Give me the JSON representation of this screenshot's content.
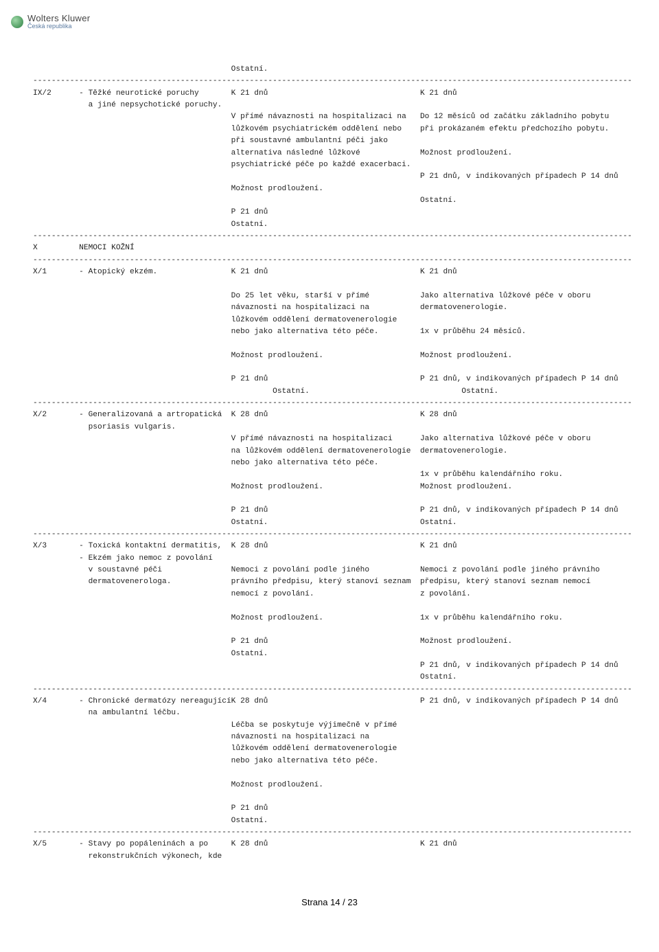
{
  "logo": {
    "brand": "Wolters Kluwer",
    "sub": "Česká republika"
  },
  "footer": {
    "text": "Strana 14 / 23"
  },
  "divider": "----------------------------------------------------------------------------------------------------------------------------------",
  "indent": {
    "col1": "",
    "col2": "          ",
    "col3": "                                           ",
    "col4": "                                                                                    "
  },
  "entries": [
    {
      "code": "IX/2",
      "title_lines": [
        "- Těžké neurotické poruchy",
        "  a jiné nepsychotické poruchy."
      ],
      "col3": [
        "K 21 dnů",
        "",
        "V přímé návaznosti na hospitalizaci na",
        "lůžkovém psychiatrickém oddělení nebo",
        "při soustavné ambulantní péči jako",
        "alternativa následné lůžkové",
        "psychiatrické péče po každé exacerbaci.",
        "",
        "Možnost prodloužení.",
        "",
        "P 21 dnů",
        "Ostatní."
      ],
      "col4": [
        "K 21 dnů",
        "",
        "Do 12 měsíců od začátku základního pobytu",
        "při prokázaném efektu předchozího pobytu.",
        "",
        "Možnost prodloužení.",
        "",
        "P 21 dnů, v indikovaných případech P 14 dnů",
        "",
        "Ostatní."
      ]
    },
    {
      "code": "X",
      "title_lines": [
        "NEMOCI KOŽNÍ"
      ],
      "col3": [],
      "col4": []
    },
    {
      "code": "X/1",
      "title_lines": [
        "- Atopický ekzém."
      ],
      "col3": [
        "K 21 dnů",
        "",
        "Do 25 let věku, starší v přímé",
        "návaznosti na hospitalizaci na",
        "lůžkovém oddělení dermatovenerologie",
        "nebo jako alternativa této péče.",
        "",
        "Možnost prodloužení.",
        "",
        "P 21 dnů",
        "         Ostatní."
      ],
      "col4": [
        "K 21 dnů",
        "",
        "Jako alternativa lůžkové péče v oboru",
        "dermatovenerologie.",
        "",
        "1x v průběhu 24 měsíců.",
        "",
        "Možnost prodloužení.",
        "",
        "P 21 dnů, v indikovaných případech P 14 dnů",
        "         Ostatní."
      ]
    },
    {
      "code": "X/2",
      "title_lines": [
        "- Generalizovaná a artropatická",
        "  psoriasis vulgaris."
      ],
      "col3": [
        "K 28 dnů",
        "",
        "V přímé návaznosti na hospitalizaci",
        "na lůžkovém oddělení dermatovenerologie",
        "nebo jako alternativa této péče.",
        "",
        "Možnost prodloužení.",
        "",
        "P 21 dnů",
        "Ostatní."
      ],
      "col4": [
        "K 28 dnů",
        "",
        "Jako alternativa lůžkové péče v oboru",
        "dermatovenerologie.",
        "",
        "1x v průběhu kalendářního roku.",
        "Možnost prodloužení.",
        "",
        "P 21 dnů, v indikovaných případech P 14 dnů",
        "Ostatní."
      ]
    },
    {
      "code": "X/3",
      "title_lines": [
        "- Toxická kontaktní dermatitis,",
        "- Ekzém jako nemoc z povolání",
        "  v soustavné péči",
        "  dermatovenerologa."
      ],
      "col3": [
        "K 28 dnů",
        "",
        "Nemoci z povolání podle jiného",
        "právního předpisu, který stanoví seznam",
        "nemocí z povolání.",
        "",
        "Možnost prodloužení.",
        "",
        "P 21 dnů",
        "Ostatní."
      ],
      "col4": [
        "K 21 dnů",
        "",
        "Nemoci z povolání podle jiného právního",
        "předpisu, který stanoví seznam nemocí",
        "z povolání.",
        "",
        "1x v průběhu kalendářního roku.",
        "",
        "Možnost prodloužení.",
        "",
        "P 21 dnů, v indikovaných případech P 14 dnů",
        "Ostatní."
      ]
    },
    {
      "code": "X/4",
      "title_lines": [
        "- Chronické dermatózy nereagující",
        "  na ambulantní léčbu."
      ],
      "col3": [
        "K 28 dnů",
        "",
        "Léčba se poskytuje výjimečně v přímé",
        "návaznosti na hospitalizaci na",
        "lůžkovém oddělení dermatovenerologie",
        "nebo jako alternativa této péče.",
        "",
        "Možnost prodloužení.",
        "",
        "P 21 dnů",
        "Ostatní."
      ],
      "col4": [
        "P 21 dnů, v indikovaných případech P 14 dnů"
      ]
    },
    {
      "code": "X/5",
      "title_lines": [
        "- Stavy po popáleninách a po",
        "  rekonstrukčních výkonech, kde"
      ],
      "col3": [
        "K 28 dnů"
      ],
      "col4": [
        "K 21 dnů"
      ],
      "no_divider_after": true
    }
  ],
  "top_line": "                                           Ostatní.",
  "colors": {
    "text": "#222222",
    "background": "#ffffff",
    "logo_sub": "#5a7aa0"
  },
  "layout": {
    "col1_width": 10,
    "col3_start": 43,
    "col4_start": 84
  }
}
